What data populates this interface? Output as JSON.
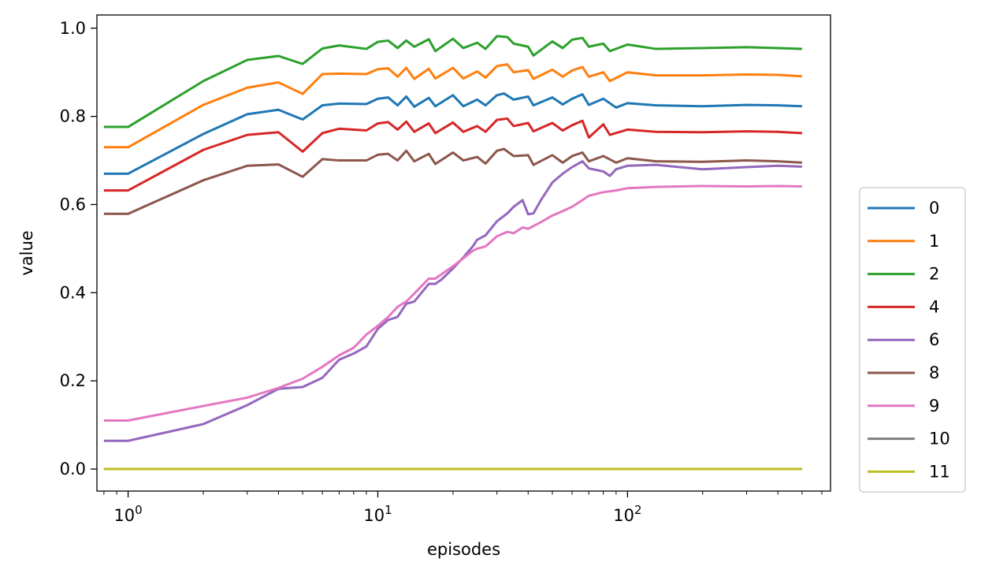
{
  "chart_data": {
    "type": "line",
    "title": "",
    "xlabel": "episodes",
    "ylabel": "value",
    "xscale": "log",
    "xlim": [
      0.75,
      650
    ],
    "ylim": [
      -0.05,
      1.03
    ],
    "grid": false,
    "legend_position": "outside-right",
    "x_ticks": [
      {
        "value": 1,
        "base": "10",
        "exp": "0"
      },
      {
        "value": 10,
        "base": "10",
        "exp": "1"
      },
      {
        "value": 100,
        "base": "10",
        "exp": "2"
      }
    ],
    "y_ticks": [
      {
        "value": 0.0,
        "label": "0.0"
      },
      {
        "value": 0.2,
        "label": "0.2"
      },
      {
        "value": 0.4,
        "label": "0.4"
      },
      {
        "value": 0.6,
        "label": "0.6"
      },
      {
        "value": 0.8,
        "label": "0.8"
      },
      {
        "value": 1.0,
        "label": "1.0"
      }
    ],
    "series": [
      {
        "name": "0",
        "color": "#1f77b4",
        "points": [
          [
            0.8,
            0.67
          ],
          [
            1,
            0.67
          ],
          [
            2,
            0.76
          ],
          [
            3,
            0.805
          ],
          [
            4,
            0.815
          ],
          [
            5,
            0.793
          ],
          [
            6,
            0.825
          ],
          [
            7,
            0.829
          ],
          [
            9,
            0.828
          ],
          [
            10,
            0.84
          ],
          [
            11,
            0.843
          ],
          [
            12,
            0.825
          ],
          [
            13,
            0.845
          ],
          [
            14,
            0.822
          ],
          [
            16,
            0.842
          ],
          [
            17,
            0.823
          ],
          [
            20,
            0.848
          ],
          [
            22,
            0.823
          ],
          [
            25,
            0.838
          ],
          [
            27,
            0.825
          ],
          [
            30,
            0.848
          ],
          [
            32,
            0.852
          ],
          [
            35,
            0.838
          ],
          [
            40,
            0.845
          ],
          [
            42,
            0.825
          ],
          [
            50,
            0.843
          ],
          [
            55,
            0.827
          ],
          [
            60,
            0.84
          ],
          [
            66,
            0.85
          ],
          [
            70,
            0.826
          ],
          [
            80,
            0.84
          ],
          [
            90,
            0.82
          ],
          [
            100,
            0.83
          ],
          [
            130,
            0.825
          ],
          [
            200,
            0.823
          ],
          [
            300,
            0.826
          ],
          [
            400,
            0.825
          ],
          [
            500,
            0.823
          ]
        ]
      },
      {
        "name": "1",
        "color": "#ff7f0e",
        "points": [
          [
            0.8,
            0.73
          ],
          [
            1,
            0.73
          ],
          [
            2,
            0.826
          ],
          [
            3,
            0.865
          ],
          [
            4,
            0.877
          ],
          [
            5,
            0.851
          ],
          [
            6,
            0.896
          ],
          [
            7,
            0.897
          ],
          [
            9,
            0.896
          ],
          [
            10,
            0.907
          ],
          [
            11,
            0.909
          ],
          [
            12,
            0.89
          ],
          [
            13,
            0.91
          ],
          [
            14,
            0.885
          ],
          [
            16,
            0.908
          ],
          [
            17,
            0.886
          ],
          [
            20,
            0.91
          ],
          [
            22,
            0.886
          ],
          [
            25,
            0.902
          ],
          [
            27,
            0.888
          ],
          [
            30,
            0.914
          ],
          [
            33,
            0.918
          ],
          [
            35,
            0.9
          ],
          [
            40,
            0.905
          ],
          [
            42,
            0.885
          ],
          [
            50,
            0.906
          ],
          [
            55,
            0.89
          ],
          [
            60,
            0.904
          ],
          [
            66,
            0.912
          ],
          [
            70,
            0.89
          ],
          [
            80,
            0.9
          ],
          [
            85,
            0.88
          ],
          [
            100,
            0.9
          ],
          [
            130,
            0.893
          ],
          [
            200,
            0.893
          ],
          [
            300,
            0.895
          ],
          [
            400,
            0.894
          ],
          [
            500,
            0.891
          ]
        ]
      },
      {
        "name": "2",
        "color": "#2ca02c",
        "points": [
          [
            0.8,
            0.776
          ],
          [
            1,
            0.776
          ],
          [
            2,
            0.88
          ],
          [
            3,
            0.928
          ],
          [
            4,
            0.937
          ],
          [
            5,
            0.919
          ],
          [
            6,
            0.954
          ],
          [
            7,
            0.961
          ],
          [
            9,
            0.953
          ],
          [
            10,
            0.969
          ],
          [
            11,
            0.972
          ],
          [
            12,
            0.955
          ],
          [
            13,
            0.972
          ],
          [
            14,
            0.958
          ],
          [
            16,
            0.975
          ],
          [
            17,
            0.948
          ],
          [
            20,
            0.976
          ],
          [
            22,
            0.955
          ],
          [
            25,
            0.967
          ],
          [
            27,
            0.953
          ],
          [
            30,
            0.982
          ],
          [
            33,
            0.98
          ],
          [
            35,
            0.965
          ],
          [
            40,
            0.958
          ],
          [
            42,
            0.938
          ],
          [
            50,
            0.97
          ],
          [
            55,
            0.955
          ],
          [
            60,
            0.974
          ],
          [
            66,
            0.978
          ],
          [
            70,
            0.958
          ],
          [
            80,
            0.965
          ],
          [
            85,
            0.948
          ],
          [
            100,
            0.963
          ],
          [
            130,
            0.953
          ],
          [
            200,
            0.955
          ],
          [
            300,
            0.957
          ],
          [
            400,
            0.955
          ],
          [
            500,
            0.953
          ]
        ]
      },
      {
        "name": "4",
        "color": "#d62728",
        "points": [
          [
            0.8,
            0.632
          ],
          [
            1,
            0.632
          ],
          [
            2,
            0.724
          ],
          [
            3,
            0.758
          ],
          [
            4,
            0.764
          ],
          [
            5,
            0.72
          ],
          [
            6,
            0.762
          ],
          [
            7,
            0.772
          ],
          [
            9,
            0.768
          ],
          [
            10,
            0.784
          ],
          [
            11,
            0.787
          ],
          [
            12,
            0.77
          ],
          [
            13,
            0.788
          ],
          [
            14,
            0.765
          ],
          [
            16,
            0.784
          ],
          [
            17,
            0.762
          ],
          [
            20,
            0.786
          ],
          [
            22,
            0.765
          ],
          [
            25,
            0.778
          ],
          [
            27,
            0.765
          ],
          [
            30,
            0.792
          ],
          [
            33,
            0.795
          ],
          [
            35,
            0.778
          ],
          [
            40,
            0.785
          ],
          [
            42,
            0.766
          ],
          [
            50,
            0.785
          ],
          [
            55,
            0.768
          ],
          [
            60,
            0.78
          ],
          [
            66,
            0.79
          ],
          [
            70,
            0.752
          ],
          [
            80,
            0.782
          ],
          [
            85,
            0.758
          ],
          [
            100,
            0.77
          ],
          [
            130,
            0.765
          ],
          [
            200,
            0.764
          ],
          [
            300,
            0.766
          ],
          [
            400,
            0.765
          ],
          [
            500,
            0.762
          ]
        ]
      },
      {
        "name": "6",
        "color": "#9467bd",
        "points": [
          [
            0.8,
            0.064
          ],
          [
            1,
            0.064
          ],
          [
            2,
            0.102
          ],
          [
            3,
            0.145
          ],
          [
            4,
            0.182
          ],
          [
            5,
            0.186
          ],
          [
            6,
            0.207
          ],
          [
            7,
            0.248
          ],
          [
            8,
            0.262
          ],
          [
            9,
            0.278
          ],
          [
            10,
            0.318
          ],
          [
            11,
            0.338
          ],
          [
            12,
            0.345
          ],
          [
            13,
            0.375
          ],
          [
            14,
            0.38
          ],
          [
            16,
            0.42
          ],
          [
            17,
            0.42
          ],
          [
            18,
            0.43
          ],
          [
            20,
            0.455
          ],
          [
            22,
            0.48
          ],
          [
            24,
            0.505
          ],
          [
            25,
            0.52
          ],
          [
            27,
            0.53
          ],
          [
            30,
            0.562
          ],
          [
            33,
            0.58
          ],
          [
            35,
            0.595
          ],
          [
            38,
            0.61
          ],
          [
            40,
            0.578
          ],
          [
            42,
            0.58
          ],
          [
            45,
            0.61
          ],
          [
            50,
            0.65
          ],
          [
            55,
            0.67
          ],
          [
            60,
            0.685
          ],
          [
            66,
            0.698
          ],
          [
            70,
            0.682
          ],
          [
            80,
            0.675
          ],
          [
            85,
            0.665
          ],
          [
            90,
            0.68
          ],
          [
            100,
            0.688
          ],
          [
            130,
            0.69
          ],
          [
            200,
            0.68
          ],
          [
            300,
            0.685
          ],
          [
            400,
            0.688
          ],
          [
            500,
            0.686
          ]
        ]
      },
      {
        "name": "8",
        "color": "#8c564b",
        "points": [
          [
            0.8,
            0.579
          ],
          [
            1,
            0.579
          ],
          [
            2,
            0.655
          ],
          [
            3,
            0.688
          ],
          [
            4,
            0.691
          ],
          [
            5,
            0.663
          ],
          [
            6,
            0.703
          ],
          [
            7,
            0.7
          ],
          [
            9,
            0.7
          ],
          [
            10,
            0.713
          ],
          [
            11,
            0.715
          ],
          [
            12,
            0.7
          ],
          [
            13,
            0.722
          ],
          [
            14,
            0.698
          ],
          [
            16,
            0.715
          ],
          [
            17,
            0.692
          ],
          [
            20,
            0.718
          ],
          [
            22,
            0.7
          ],
          [
            25,
            0.708
          ],
          [
            27,
            0.693
          ],
          [
            30,
            0.722
          ],
          [
            32,
            0.726
          ],
          [
            35,
            0.71
          ],
          [
            40,
            0.712
          ],
          [
            42,
            0.69
          ],
          [
            50,
            0.712
          ],
          [
            55,
            0.695
          ],
          [
            60,
            0.71
          ],
          [
            66,
            0.718
          ],
          [
            70,
            0.698
          ],
          [
            80,
            0.71
          ],
          [
            90,
            0.695
          ],
          [
            100,
            0.705
          ],
          [
            130,
            0.698
          ],
          [
            200,
            0.697
          ],
          [
            300,
            0.7
          ],
          [
            400,
            0.698
          ],
          [
            500,
            0.695
          ]
        ]
      },
      {
        "name": "9",
        "color": "#e377c2",
        "points": [
          [
            0.8,
            0.11
          ],
          [
            1,
            0.11
          ],
          [
            2,
            0.143
          ],
          [
            3,
            0.162
          ],
          [
            4,
            0.184
          ],
          [
            5,
            0.205
          ],
          [
            6,
            0.232
          ],
          [
            7,
            0.258
          ],
          [
            8,
            0.275
          ],
          [
            9,
            0.305
          ],
          [
            10,
            0.325
          ],
          [
            11,
            0.345
          ],
          [
            12,
            0.368
          ],
          [
            13,
            0.38
          ],
          [
            14,
            0.398
          ],
          [
            16,
            0.432
          ],
          [
            17,
            0.432
          ],
          [
            20,
            0.46
          ],
          [
            22,
            0.478
          ],
          [
            24,
            0.495
          ],
          [
            25,
            0.5
          ],
          [
            27,
            0.505
          ],
          [
            30,
            0.528
          ],
          [
            33,
            0.538
          ],
          [
            35,
            0.535
          ],
          [
            38,
            0.548
          ],
          [
            40,
            0.545
          ],
          [
            45,
            0.56
          ],
          [
            50,
            0.575
          ],
          [
            55,
            0.585
          ],
          [
            60,
            0.595
          ],
          [
            66,
            0.61
          ],
          [
            70,
            0.62
          ],
          [
            80,
            0.628
          ],
          [
            90,
            0.632
          ],
          [
            100,
            0.637
          ],
          [
            130,
            0.64
          ],
          [
            200,
            0.642
          ],
          [
            300,
            0.641
          ],
          [
            400,
            0.642
          ],
          [
            500,
            0.641
          ]
        ]
      },
      {
        "name": "10",
        "color": "#7f7f7f",
        "points": [
          [
            0.8,
            0.0
          ],
          [
            500,
            0.0
          ]
        ]
      },
      {
        "name": "11",
        "color": "#bcbd22",
        "points": [
          [
            0.8,
            0.0
          ],
          [
            500,
            0.0
          ]
        ]
      }
    ]
  }
}
